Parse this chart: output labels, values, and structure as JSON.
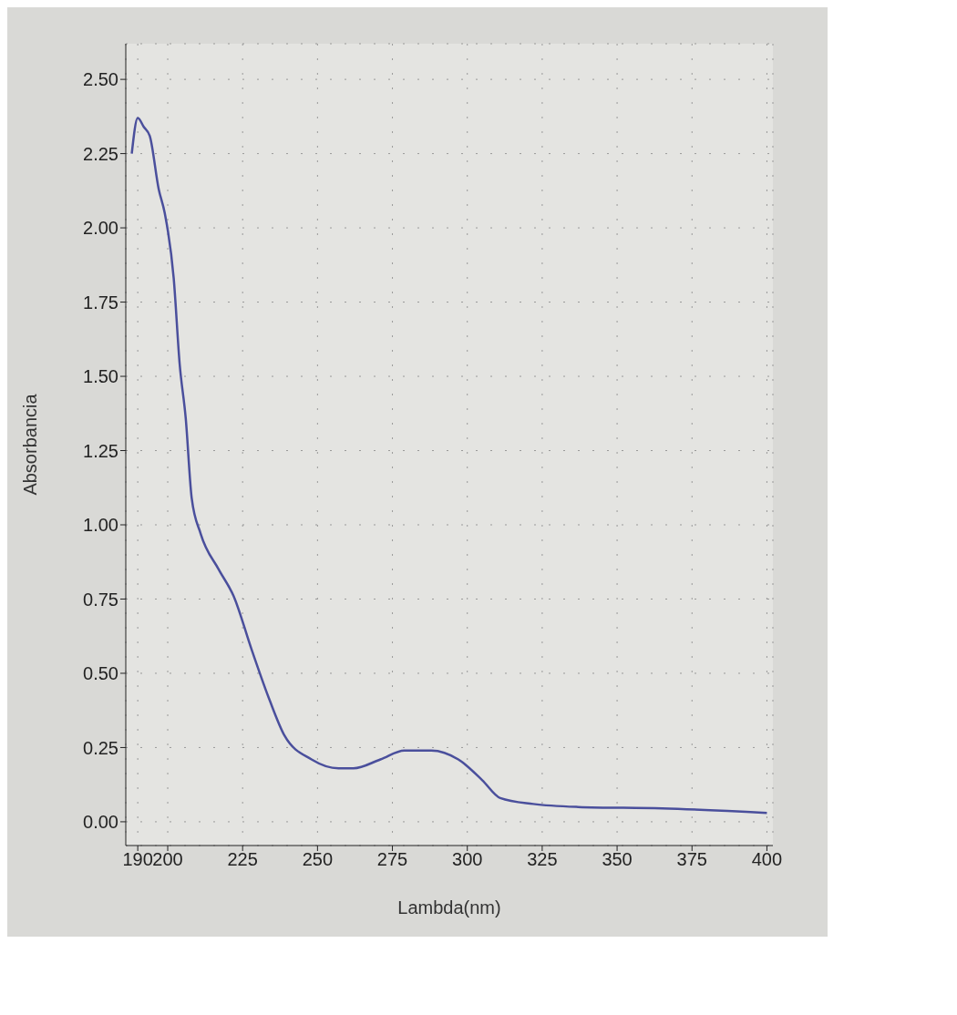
{
  "chart_data": {
    "type": "line",
    "xlabel": "Lambda(nm)",
    "ylabel": "Absorbancia",
    "x": [
      188,
      190,
      192,
      194,
      197,
      199,
      202,
      204,
      206,
      208,
      211,
      217,
      222,
      228,
      234,
      239,
      248,
      257,
      262,
      271,
      279,
      288,
      297,
      305,
      311,
      322,
      337,
      365,
      400
    ],
    "series": [
      {
        "color": "#4a4f9c",
        "values": [
          2.25,
          2.37,
          2.34,
          2.31,
          2.13,
          2.05,
          1.83,
          1.54,
          1.36,
          1.09,
          0.97,
          0.85,
          0.76,
          0.58,
          0.41,
          0.29,
          0.21,
          0.18,
          0.18,
          0.21,
          0.24,
          0.24,
          0.21,
          0.14,
          0.08,
          0.06,
          0.05,
          0.045,
          0.03
        ]
      }
    ],
    "xlim": [
      186,
      402
    ],
    "xticks": [
      190,
      200,
      225,
      250,
      275,
      300,
      325,
      350,
      375,
      400
    ],
    "ylim": [
      -0.08,
      2.62
    ],
    "yticks": [
      {
        "value": 0,
        "label": "0.00"
      },
      {
        "value": 0.25,
        "label": "0.25"
      },
      {
        "value": 0.5,
        "label": "0.50"
      },
      {
        "value": 0.75,
        "label": "0.75"
      },
      {
        "value": 1,
        "label": "1.00"
      },
      {
        "value": 1.25,
        "label": "1.25"
      },
      {
        "value": 1.5,
        "label": "1.50"
      },
      {
        "value": 1.75,
        "label": "1.75"
      },
      {
        "value": 2,
        "label": "2.00"
      },
      {
        "value": 2.25,
        "label": "2.25"
      },
      {
        "value": 2.5,
        "label": "2.50"
      }
    ],
    "grid": true,
    "marker": "none",
    "line_style": "solid"
  }
}
